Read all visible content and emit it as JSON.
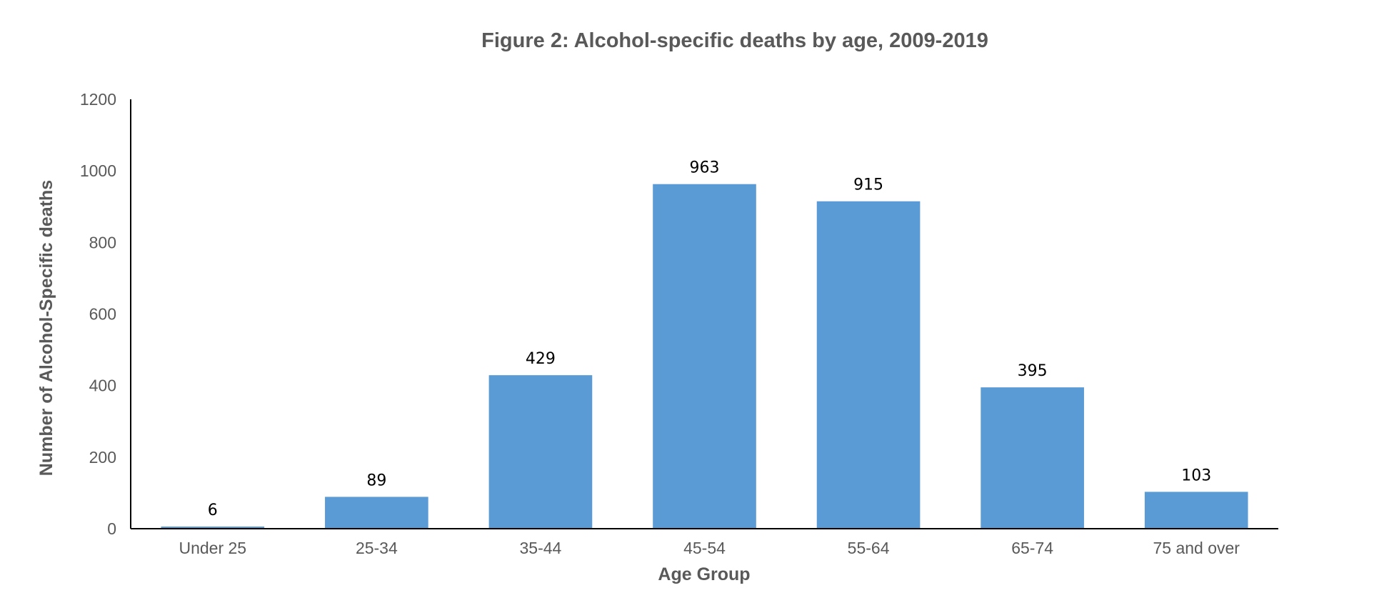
{
  "colors": {
    "bar": "#5b9bd5",
    "axis": "#000000",
    "text": "#595959",
    "data_label": "#000000"
  },
  "chart_data": {
    "type": "bar",
    "title": "Figure 2: Alcohol-specific deaths by age, 2009-2019",
    "xlabel": "Age Group",
    "ylabel": "Number of Alcohol-Specific deaths",
    "categories": [
      "Under 25",
      "25-34",
      "35-44",
      "45-54",
      "55-64",
      "65-74",
      "75 and over"
    ],
    "values": [
      6,
      89,
      429,
      963,
      915,
      395,
      103
    ],
    "data_labels": [
      "6",
      "89",
      "429",
      "963",
      "915",
      "395",
      "103"
    ],
    "ylim": [
      0,
      1200
    ],
    "yticks": [
      "0",
      "200",
      "400",
      "600",
      "800",
      "1000",
      "1200"
    ],
    "grid": false,
    "legend": "none"
  }
}
